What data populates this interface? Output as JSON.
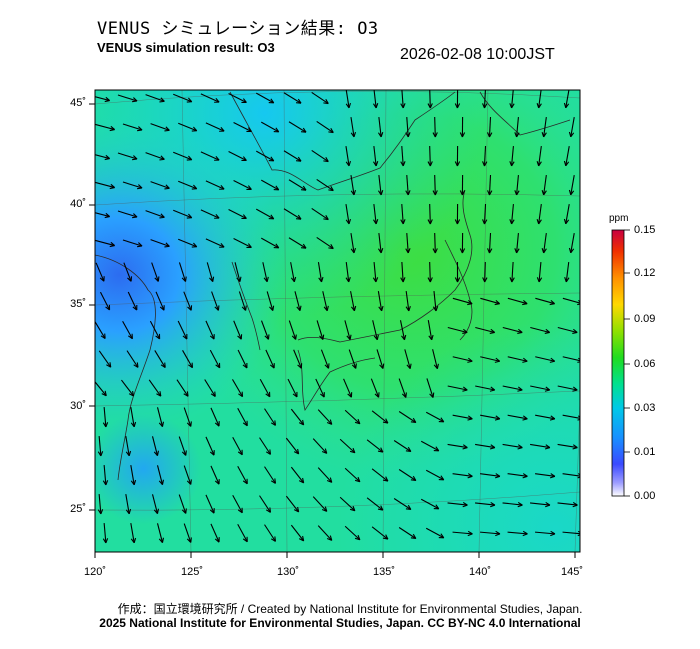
{
  "header": {
    "title_jp": "VENUS シミュレーション結果: O3",
    "title_en": "VENUS simulation result: O3",
    "datetime": "2026-02-08 10:00JST"
  },
  "map": {
    "lat_ticks": [
      "45˚",
      "40˚",
      "35˚",
      "30˚",
      "25˚"
    ],
    "lon_ticks": [
      "120˚",
      "125˚",
      "130˚",
      "135˚",
      "140˚",
      "145˚"
    ],
    "colors": {
      "field_low": "#2aa0ff",
      "field_mid": "#19e0a0",
      "field_high": "#3ddc3a",
      "coast": "#333333",
      "arrow": "#000000",
      "frame": "#000000"
    }
  },
  "colorbar": {
    "unit": "ppm",
    "ticks": [
      "0.15",
      "0.12",
      "0.09",
      "0.06",
      "0.03",
      "0.01",
      "0.00"
    ],
    "colors": [
      "#ffffff",
      "#3a3aff",
      "#00c8ff",
      "#00e070",
      "#33dd00",
      "#ffdd00",
      "#ff8800",
      "#e00000",
      "#c00040"
    ]
  },
  "footer": {
    "credit": "作成：国立環境研究所 / Created by National Institute for Environmental Studies, Japan.",
    "copyright": "2025 National Institute for Environmental Studies, Japan. CC BY-NC 4.0 International"
  }
}
